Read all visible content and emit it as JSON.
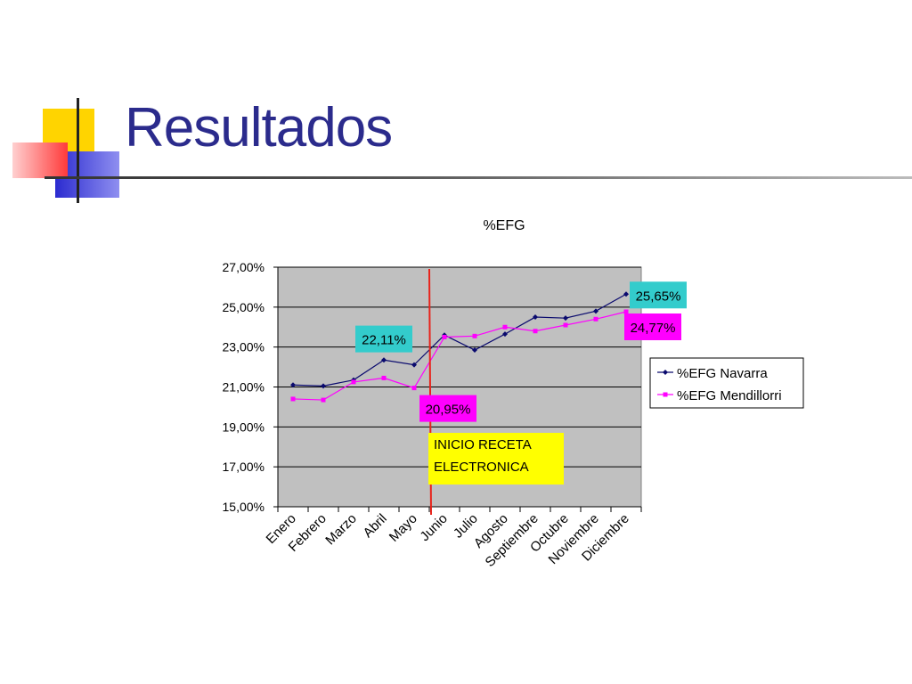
{
  "slide": {
    "title": "Resultados"
  },
  "colors": {
    "title": "#2b2b8c",
    "series_navarra": "#0a0a6e",
    "series_mendillorri": "#ff00ff",
    "plot_bg": "#c0c0c0",
    "marker_line": "#e8231b",
    "annotation_box": "#ffff00",
    "label_cyan": "#33cccc",
    "label_magenta": "#ff00ff"
  },
  "chart_data": {
    "type": "line",
    "title": "%EFG",
    "categories": [
      "Enero",
      "Febrero",
      "Marzo",
      "Abril",
      "Mayo",
      "Junio",
      "Julio",
      "Agosto",
      "Septiembre",
      "Octubre",
      "Noviembre",
      "Diciembre"
    ],
    "series": [
      {
        "name": "%EFG Navarra",
        "values": [
          21.1,
          21.05,
          21.35,
          22.35,
          22.11,
          23.6,
          22.85,
          23.65,
          24.5,
          24.45,
          24.8,
          25.65
        ]
      },
      {
        "name": "%EFG Mendillorri",
        "values": [
          20.4,
          20.35,
          21.25,
          21.45,
          20.95,
          23.5,
          23.55,
          24.0,
          23.8,
          24.1,
          24.4,
          24.77
        ]
      }
    ],
    "ylim": [
      15,
      27
    ],
    "yticks": [
      "15,00%",
      "17,00%",
      "19,00%",
      "21,00%",
      "23,00%",
      "25,00%",
      "27,00%"
    ],
    "ytick_values": [
      15,
      17,
      19,
      21,
      23,
      25,
      27
    ],
    "grid": true,
    "legend_position": "right",
    "data_labels": [
      {
        "text": "22,11%",
        "series": 0,
        "category": "Mayo",
        "color": "cyan",
        "placement": "above-left"
      },
      {
        "text": "20,95%",
        "series": 1,
        "category": "Mayo",
        "color": "magenta",
        "placement": "below-right"
      },
      {
        "text": "25,65%",
        "series": 0,
        "category": "Diciembre",
        "color": "cyan",
        "placement": "right"
      },
      {
        "text": "24,77%",
        "series": 1,
        "category": "Diciembre",
        "color": "magenta",
        "placement": "below"
      }
    ],
    "annotation": {
      "lines": [
        "INICIO RECETA",
        "ELECTRONICA"
      ],
      "marker_between": [
        "Mayo",
        "Junio"
      ]
    }
  }
}
